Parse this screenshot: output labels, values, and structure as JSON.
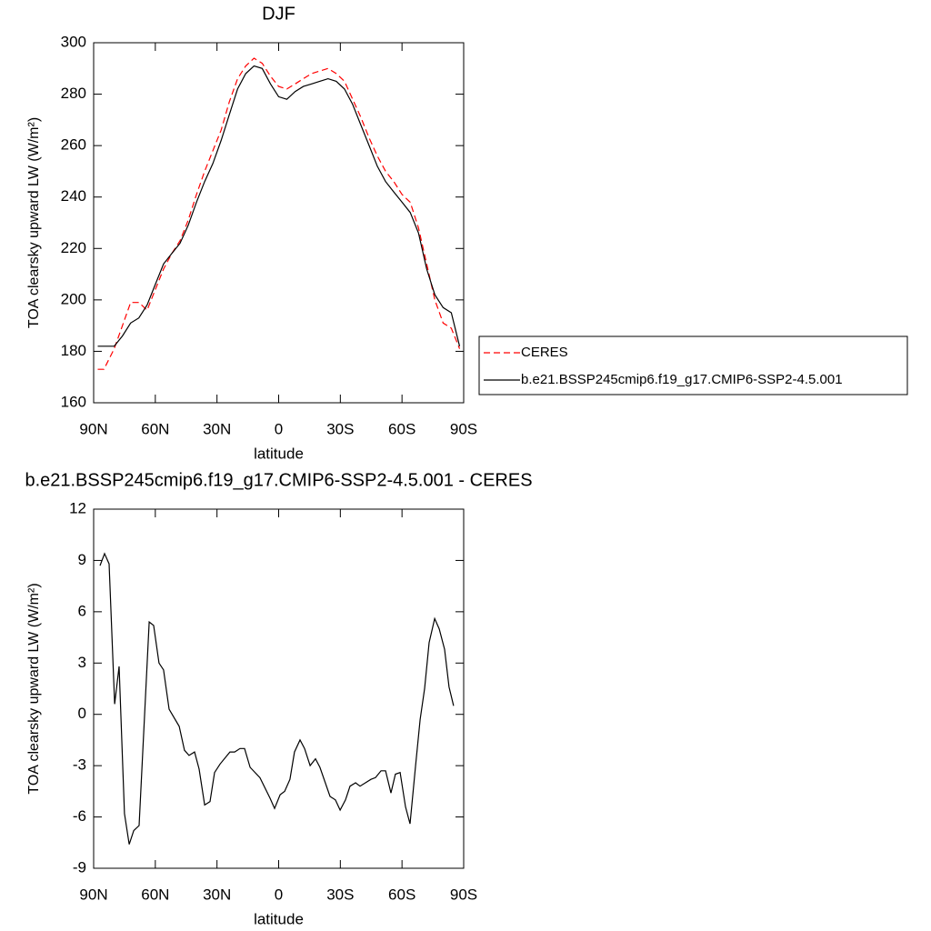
{
  "chart_data": [
    {
      "type": "line",
      "title": "DJF",
      "xlabel": "latitude",
      "ylabel": "TOA clearsky upward LW (W/m²)",
      "x": [
        88,
        85,
        80,
        76,
        72,
        68,
        64,
        60,
        56,
        52,
        48,
        44,
        40,
        36,
        32,
        28,
        24,
        20,
        16,
        12,
        8,
        4,
        0,
        -4,
        -8,
        -12,
        -16,
        -20,
        -24,
        -28,
        -32,
        -36,
        -40,
        -44,
        -48,
        -52,
        -56,
        -60,
        -64,
        -68,
        -72,
        -76,
        -80,
        -84,
        -88
      ],
      "series": [
        {
          "name": "CERES",
          "color": "#ff0000",
          "line_style": "dashed",
          "values": [
            173,
            173,
            181,
            190,
            199,
            199,
            196,
            204,
            212,
            218,
            223,
            231,
            241,
            250,
            258,
            266,
            277,
            286,
            291,
            294,
            292,
            287,
            283,
            282,
            284,
            286,
            288,
            289,
            290,
            288,
            285,
            278,
            271,
            263,
            256,
            250,
            246,
            241,
            238,
            228,
            214,
            200,
            191,
            189,
            181
          ]
        },
        {
          "name": "b.e21.BSSP245cmip6.f19_g17.CMIP6-SSP2-4.5.001",
          "color": "#000000",
          "line_style": "solid",
          "values": [
            182,
            182,
            182,
            186,
            191,
            193,
            198,
            206,
            214,
            218,
            222,
            229,
            238,
            246,
            253,
            262,
            272,
            282,
            288,
            291,
            290,
            284,
            279,
            278,
            281,
            283,
            284,
            285,
            286,
            285,
            282,
            276,
            268,
            260,
            252,
            246,
            242,
            238,
            234,
            226,
            212,
            202,
            197,
            195,
            182
          ]
        }
      ],
      "xlim": [
        90,
        -90
      ],
      "xticks": [
        {
          "value": 90,
          "label": "90N"
        },
        {
          "value": 60,
          "label": "60N"
        },
        {
          "value": 30,
          "label": "30N"
        },
        0,
        {
          "value": -30,
          "label": "30S"
        },
        {
          "value": -60,
          "label": "60S"
        },
        {
          "value": -90,
          "label": "90S"
        }
      ],
      "ylim": [
        160,
        300
      ],
      "yticks": [
        160,
        180,
        200,
        220,
        240,
        260,
        280,
        300
      ],
      "legend": "right"
    },
    {
      "type": "line",
      "title": "b.e21.BSSP245cmip6.f19_g17.CMIP6-SSP2-4.5.001 - CERES",
      "xlabel": "latitude",
      "ylabel": "TOA clearsky upward LW (W/m²)",
      "x": [
        86.9,
        84.7,
        82.5,
        79.8,
        77.6,
        75,
        72.7,
        70.5,
        67.9,
        63,
        60.8,
        58.2,
        56,
        53.3,
        48.4,
        45.8,
        43.6,
        40.9,
        38.7,
        36,
        33.4,
        31.2,
        28.5,
        23.7,
        21.4,
        18.8,
        16.6,
        13.9,
        9.1,
        4.2,
        2,
        -0.7,
        -2.9,
        -5.5,
        -7.7,
        -10.4,
        -12.6,
        -15.3,
        -17.9,
        -20.1,
        -25,
        -27.6,
        -29.9,
        -32.5,
        -34.7,
        -37.4,
        -39.6,
        -44.9,
        -47.1,
        -49.8,
        -52,
        -54.6,
        -56.8,
        -59.1,
        -61.7,
        -63.9,
        -66.6,
        -68.8,
        -71,
        -73.2,
        -75.9,
        -78.1,
        -80.7,
        -82.9,
        -85.1
      ],
      "series": [
        {
          "color": "#000000",
          "line_style": "solid",
          "values": [
            8.7,
            9.4,
            8.8,
            0.6,
            2.8,
            -5.8,
            -7.6,
            -6.8,
            -6.5,
            5.4,
            5.2,
            3,
            2.6,
            0.3,
            -0.7,
            -2.1,
            -2.4,
            -2.2,
            -3.2,
            -5.3,
            -5.1,
            -3.4,
            -2.9,
            -2.2,
            -2.2,
            -2,
            -2,
            -3.1,
            -3.7,
            -4.9,
            -5.5,
            -4.7,
            -4.5,
            -3.8,
            -2.2,
            -1.5,
            -2,
            -3,
            -2.6,
            -3.1,
            -4.8,
            -5,
            -5.6,
            -5,
            -4.2,
            -4,
            -4.2,
            -3.8,
            -3.7,
            -3.3,
            -3.3,
            -4.6,
            -3.5,
            -3.4,
            -5.4,
            -6.4,
            -3,
            -0.3,
            1.5,
            4.2,
            5.6,
            5,
            3.8,
            1.6,
            0.5
          ]
        }
      ],
      "xlim": [
        90,
        -90
      ],
      "xticks": [
        {
          "value": 90,
          "label": "90N"
        },
        {
          "value": 60,
          "label": "60N"
        },
        {
          "value": 30,
          "label": "30N"
        },
        0,
        {
          "value": -30,
          "label": "30S"
        },
        {
          "value": -60,
          "label": "60S"
        },
        {
          "value": -90,
          "label": "90S"
        }
      ],
      "ylim": [
        -9,
        12
      ],
      "yticks": [
        -9,
        -6,
        -3,
        0,
        3,
        6,
        9,
        12
      ]
    }
  ]
}
